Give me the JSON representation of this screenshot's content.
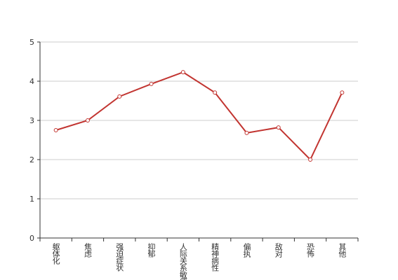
{
  "chart_data": {
    "type": "line",
    "categories": [
      "躯体化",
      "焦虑",
      "强迫症状",
      "抑郁",
      "人际关系敏感",
      "精神病性",
      "偏执",
      "敌对",
      "恐怖",
      "其他"
    ],
    "series": [
      {
        "color": "#c23531",
        "values": [
          2.75,
          3.0,
          3.61,
          3.93,
          4.23,
          3.71,
          2.68,
          2.82,
          2.0,
          3.71
        ]
      }
    ],
    "ylim": [
      0,
      5
    ],
    "yticks": [
      0,
      1,
      2,
      3,
      4,
      5
    ],
    "grid": true
  }
}
